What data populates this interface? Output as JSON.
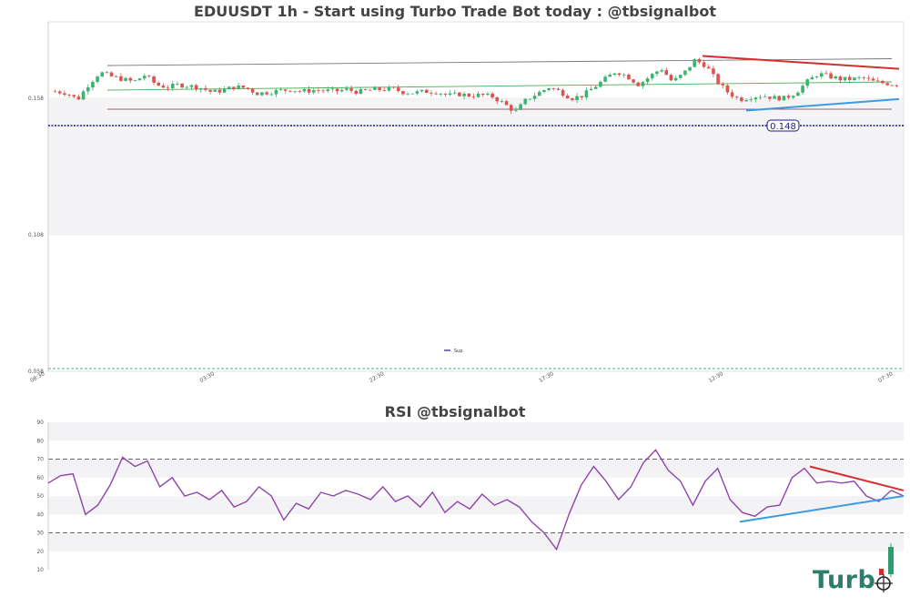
{
  "chart_data": [
    {
      "type": "candlestick",
      "title": "EDUUSDT 1h - Start using Turbo Trade Bot today : @tbsignalbot",
      "ylim": [
        0.058,
        0.18
      ],
      "yticks": [
        "0.158",
        "0.108",
        "0.058"
      ],
      "xticks": [
        "08:30",
        "03:30",
        "22:30",
        "17:30",
        "12:30",
        "07:30"
      ],
      "support_level": 0.148,
      "support_label": "0.148",
      "legend": [
        {
          "name": "Sup",
          "color": "#1a1a8c"
        }
      ],
      "legend_position": "bottom-center",
      "close_path": [
        0.1605,
        0.16,
        0.1575,
        0.1632,
        0.1675,
        0.166,
        0.165,
        0.164,
        0.1665,
        0.163,
        0.162,
        0.163,
        0.1625,
        0.1618,
        0.1602,
        0.161,
        0.1622,
        0.1618,
        0.1598,
        0.1602,
        0.1608,
        0.1612,
        0.1605,
        0.161,
        0.1608,
        0.1606,
        0.1612,
        0.1603,
        0.161,
        0.1612,
        0.1615,
        0.1603,
        0.16,
        0.1605,
        0.1604,
        0.159,
        0.1595,
        0.159,
        0.1592,
        0.1586,
        0.156,
        0.153,
        0.1575,
        0.1598,
        0.162,
        0.1605,
        0.158,
        0.159,
        0.162,
        0.165,
        0.168,
        0.166,
        0.163,
        0.166,
        0.169,
        0.164,
        0.167,
        0.172,
        0.17,
        0.164,
        0.16,
        0.1575,
        0.1585,
        0.159,
        0.1582,
        0.158,
        0.16,
        0.164,
        0.167,
        0.166,
        0.165,
        0.165,
        0.1655,
        0.164,
        0.1635,
        0.163
      ],
      "trendlines": [
        {
          "name": "channel-top",
          "color": "#777777",
          "from": [
            "08:30",
            0.17
          ],
          "to": [
            "07:30",
            0.1725
          ]
        },
        {
          "name": "channel-mid",
          "color": "#4caf50",
          "from": [
            "08:30",
            0.161
          ],
          "to": [
            "07:30",
            0.164
          ]
        },
        {
          "name": "channel-bottom",
          "color": "#a06070",
          "from": [
            "08:30",
            0.154
          ],
          "to": [
            "07:30",
            0.154
          ]
        },
        {
          "name": "resistance",
          "color": "#d32f2f",
          "from": [
            "12:30",
            0.1735
          ],
          "to": [
            "07:30",
            0.1688
          ]
        },
        {
          "name": "support",
          "color": "#3d9be0",
          "from": [
            "12:30",
            0.1535
          ],
          "to": [
            "07:30",
            0.1577
          ]
        }
      ],
      "grid": true
    },
    {
      "type": "line",
      "title": "RSI @tbsignalbot",
      "ylim": [
        10,
        90
      ],
      "yticks": [
        "90",
        "80",
        "70",
        "60",
        "50",
        "40",
        "30",
        "20",
        "10"
      ],
      "reference_lines": [
        70,
        30
      ],
      "series": [
        {
          "color": "#8e44ad",
          "values": [
            57,
            61,
            62,
            40,
            45,
            56,
            71,
            66,
            69,
            55,
            60,
            50,
            52,
            48,
            53,
            44,
            47,
            55,
            50,
            37,
            46,
            43,
            52,
            50,
            53,
            51,
            48,
            55,
            47,
            50,
            44,
            52,
            41,
            47,
            43,
            51,
            45,
            48,
            44,
            36,
            30,
            21,
            40,
            56,
            66,
            58,
            48,
            55,
            68,
            75,
            64,
            58,
            45,
            58,
            65,
            48,
            41,
            39,
            44,
            45,
            60,
            65,
            57,
            58,
            57,
            58,
            50,
            47,
            53,
            50
          ]
        }
      ],
      "trendlines": [
        {
          "name": "rsi-resistance",
          "color": "#d32f2f",
          "from": 66,
          "to": 53
        },
        {
          "name": "rsi-support",
          "color": "#3d9be0",
          "from": 36,
          "to": 50
        }
      ],
      "grid": true
    }
  ],
  "branding": {
    "logo_text": "Turb"
  }
}
